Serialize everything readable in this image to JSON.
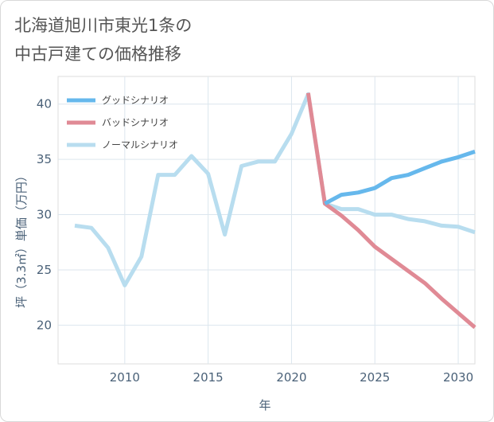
{
  "chart_data": {
    "type": "line",
    "title_line1": "北海道旭川市東光1条の",
    "title_line2": "中古戸建ての価格推移",
    "xlabel": "年",
    "ylabel": "坪（3.3㎡）単価（万円）",
    "xlim": [
      2006,
      2031
    ],
    "ylim": [
      16.5,
      42.5
    ],
    "xticks": [
      2010,
      2015,
      2020,
      2025,
      2030
    ],
    "yticks": [
      20,
      25,
      30,
      35,
      40
    ],
    "grid": true,
    "legend_position": "top-left",
    "series": [
      {
        "name": "グッドシナリオ",
        "color": "#66b8ec",
        "x": [
          2022,
          2023,
          2024,
          2025,
          2026,
          2027,
          2028,
          2029,
          2030,
          2031
        ],
        "y": [
          31.0,
          31.8,
          32.0,
          32.4,
          33.3,
          33.6,
          34.2,
          34.8,
          35.2,
          35.7
        ]
      },
      {
        "name": "バッドシナリオ",
        "color": "#e08a95",
        "x": [
          2021,
          2022,
          2023,
          2024,
          2025,
          2026,
          2027,
          2028,
          2029,
          2030,
          2031
        ],
        "y": [
          41.0,
          31.0,
          29.9,
          28.6,
          27.1,
          26.0,
          24.9,
          23.8,
          22.4,
          21.1,
          19.8
        ]
      },
      {
        "name": "ノーマルシナリオ",
        "color": "#b8ddef",
        "x": [
          2007,
          2008,
          2009,
          2010,
          2011,
          2012,
          2013,
          2014,
          2015,
          2016,
          2017,
          2018,
          2019,
          2020,
          2021,
          2022,
          2023,
          2024,
          2025,
          2026,
          2027,
          2028,
          2029,
          2030,
          2031
        ],
        "y": [
          29.0,
          28.8,
          27.0,
          23.6,
          26.2,
          33.6,
          33.6,
          35.3,
          33.7,
          28.2,
          34.4,
          34.8,
          34.8,
          37.3,
          40.9,
          31.0,
          30.5,
          30.5,
          30.0,
          30.0,
          29.6,
          29.4,
          29.0,
          28.9,
          28.4
        ]
      }
    ]
  }
}
